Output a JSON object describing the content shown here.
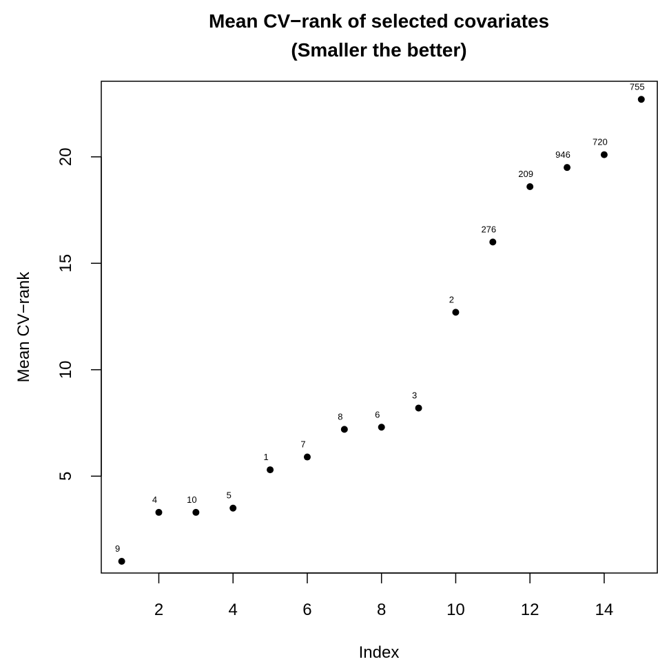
{
  "chart_data": {
    "type": "scatter",
    "title": "Mean CV−rank of selected covariates",
    "subtitle": "(Smaller the better)",
    "xlabel": "Index",
    "ylabel": "Mean CV−rank",
    "xlim": [
      0.45,
      15.45
    ],
    "ylim": [
      0.45,
      23.55
    ],
    "x_ticks": [
      2,
      4,
      6,
      8,
      10,
      12,
      14
    ],
    "y_ticks": [
      5,
      10,
      15,
      20
    ],
    "grid": false,
    "legend": "none",
    "point_color": "#000000",
    "points": [
      {
        "x": 1,
        "y": 1.0,
        "label": "9"
      },
      {
        "x": 2,
        "y": 3.3,
        "label": "4"
      },
      {
        "x": 3,
        "y": 3.3,
        "label": "10"
      },
      {
        "x": 4,
        "y": 3.5,
        "label": "5"
      },
      {
        "x": 5,
        "y": 5.3,
        "label": "1"
      },
      {
        "x": 6,
        "y": 5.9,
        "label": "7"
      },
      {
        "x": 7,
        "y": 7.2,
        "label": "8"
      },
      {
        "x": 8,
        "y": 7.3,
        "label": "6"
      },
      {
        "x": 9,
        "y": 8.2,
        "label": "3"
      },
      {
        "x": 10,
        "y": 12.7,
        "label": "2"
      },
      {
        "x": 11,
        "y": 16.0,
        "label": "276"
      },
      {
        "x": 12,
        "y": 18.6,
        "label": "209"
      },
      {
        "x": 13,
        "y": 19.5,
        "label": "946"
      },
      {
        "x": 14,
        "y": 20.1,
        "label": "720"
      },
      {
        "x": 15,
        "y": 22.7,
        "label": "755"
      }
    ]
  }
}
